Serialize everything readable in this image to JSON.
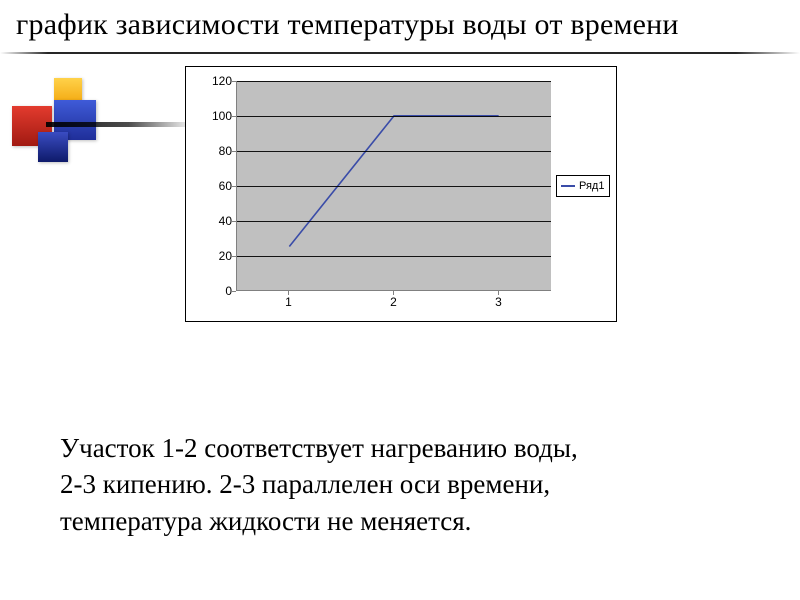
{
  "title": "график зависимости температуры воды от времени",
  "deco": {
    "colors": {
      "yellow": "#f8b817",
      "red": "#c7281c",
      "blue": "#2d3fbc",
      "navy": "#1a2a8a"
    }
  },
  "chart": {
    "type": "line",
    "background_color": "#ffffff",
    "plot_background_color": "#c0c0c0",
    "border_color": "#000000",
    "grid_color": "#000000",
    "axis_color": "#808080",
    "tick_font_family": "Arial",
    "tick_fontsize": 12,
    "ylim": [
      0,
      120
    ],
    "ytick_step": 20,
    "yticks": [
      0,
      20,
      40,
      60,
      80,
      100,
      120
    ],
    "x_categories": [
      "1",
      "2",
      "3"
    ],
    "series": [
      {
        "name": "Ряд1",
        "color": "#3a4ca8",
        "line_width": 1.6,
        "values": [
          25,
          100,
          100
        ]
      }
    ],
    "legend": {
      "position": "right-middle",
      "border_color": "#000000",
      "background_color": "#ffffff",
      "fontsize": 11
    }
  },
  "caption_lines": [
    "Участок 1-2 соответствует нагреванию воды,",
    "2-3 кипению. 2-3 параллелен оси времени,",
    "температура жидкости не меняется."
  ]
}
